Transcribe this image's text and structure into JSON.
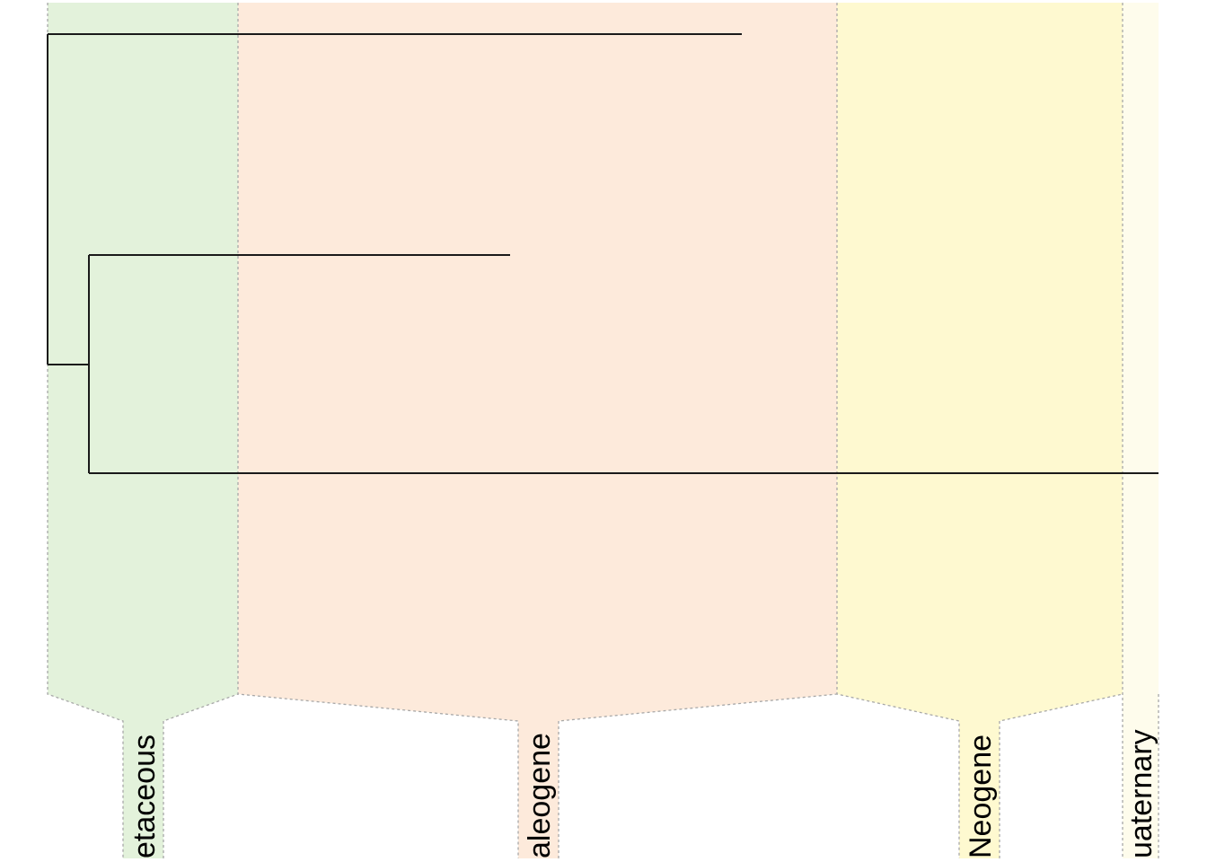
{
  "timescale": {
    "periods": [
      {
        "name": "Cretaceous",
        "label": "etaceous",
        "color": "#e3f2db"
      },
      {
        "name": "Paleogene",
        "label": "aleogene",
        "color": "#fdeadb"
      },
      {
        "name": "Neogene",
        "label": "Neogene",
        "color": "#fef9d0"
      },
      {
        "name": "Quaternary",
        "label": "uaternary",
        "color": "#fefcec"
      }
    ]
  },
  "tree": {
    "branch_color": "#1a1a1a",
    "boundary_color": "#a8a8a8"
  }
}
